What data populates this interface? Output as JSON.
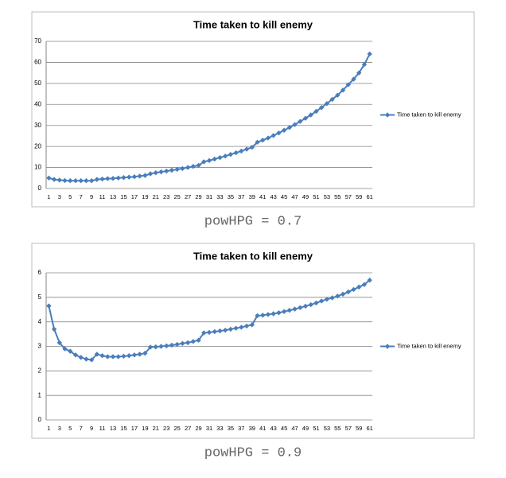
{
  "chart_data": [
    {
      "type": "line",
      "title": "Time taken to kill enemy",
      "caption": "powHPG = 0.7",
      "categories": [
        1,
        null,
        3,
        null,
        5,
        null,
        7,
        null,
        9,
        null,
        11,
        null,
        13,
        null,
        15,
        null,
        17,
        null,
        19,
        null,
        21,
        null,
        23,
        null,
        25,
        null,
        27,
        null,
        29,
        null,
        31,
        null,
        33,
        null,
        35,
        null,
        37,
        null,
        39,
        null,
        41,
        null,
        43,
        null,
        45,
        null,
        47,
        null,
        49,
        null,
        51,
        null,
        53,
        null,
        55,
        null,
        57,
        null,
        59,
        null,
        61
      ],
      "series": [
        {
          "name": "Time taken to kill enemy",
          "color": "#4a7ebb",
          "values": [
            5,
            4.3,
            4,
            3.8,
            3.7,
            3.7,
            3.7,
            3.7,
            3.7,
            4.3,
            4.5,
            4.7,
            4.8,
            5,
            5.2,
            5.4,
            5.6,
            5.9,
            6.2,
            7,
            7.5,
            7.9,
            8.3,
            8.7,
            9.1,
            9.5,
            10,
            10.5,
            11,
            12.7,
            13.3,
            14,
            14.7,
            15.4,
            16.2,
            17,
            17.8,
            18.7,
            19.6,
            22,
            23,
            24,
            25.2,
            26.4,
            27.7,
            29,
            30.4,
            31.9,
            33.4,
            35,
            36.7,
            38.5,
            40.4,
            42.4,
            44.4,
            46.8,
            49.4,
            52,
            55,
            59,
            64
          ]
        }
      ],
      "ylim": [
        0,
        70
      ],
      "yticks": [
        0,
        10,
        20,
        30,
        40,
        50,
        60,
        70
      ],
      "grid": true,
      "legend": "right"
    },
    {
      "type": "line",
      "title": "Time taken to kill enemy",
      "caption": "powHPG = 0.9",
      "categories": [
        1,
        null,
        3,
        null,
        5,
        null,
        7,
        null,
        9,
        null,
        11,
        null,
        13,
        null,
        15,
        null,
        17,
        null,
        19,
        null,
        21,
        null,
        23,
        null,
        25,
        null,
        27,
        null,
        29,
        null,
        31,
        null,
        33,
        null,
        35,
        null,
        37,
        null,
        39,
        null,
        41,
        null,
        43,
        null,
        45,
        null,
        47,
        null,
        49,
        null,
        51,
        null,
        53,
        null,
        55,
        null,
        57,
        null,
        59,
        null,
        61
      ],
      "series": [
        {
          "name": "Time taken to kill enemy",
          "color": "#4a7ebb",
          "values": [
            4.65,
            3.7,
            3.15,
            2.9,
            2.8,
            2.65,
            2.55,
            2.48,
            2.45,
            2.68,
            2.62,
            2.58,
            2.58,
            2.58,
            2.6,
            2.62,
            2.65,
            2.68,
            2.72,
            2.97,
            2.98,
            3.0,
            3.02,
            3.05,
            3.08,
            3.12,
            3.15,
            3.2,
            3.25,
            3.55,
            3.57,
            3.6,
            3.63,
            3.66,
            3.7,
            3.74,
            3.78,
            3.83,
            3.88,
            4.25,
            4.27,
            4.3,
            4.33,
            4.37,
            4.42,
            4.47,
            4.52,
            4.58,
            4.64,
            4.7,
            4.77,
            4.85,
            4.92,
            4.98,
            5.05,
            5.13,
            5.22,
            5.32,
            5.42,
            5.52,
            5.7
          ]
        }
      ],
      "ylim": [
        0,
        6
      ],
      "yticks": [
        0,
        1,
        2,
        3,
        4,
        5,
        6
      ],
      "grid": true,
      "legend": "right"
    }
  ]
}
